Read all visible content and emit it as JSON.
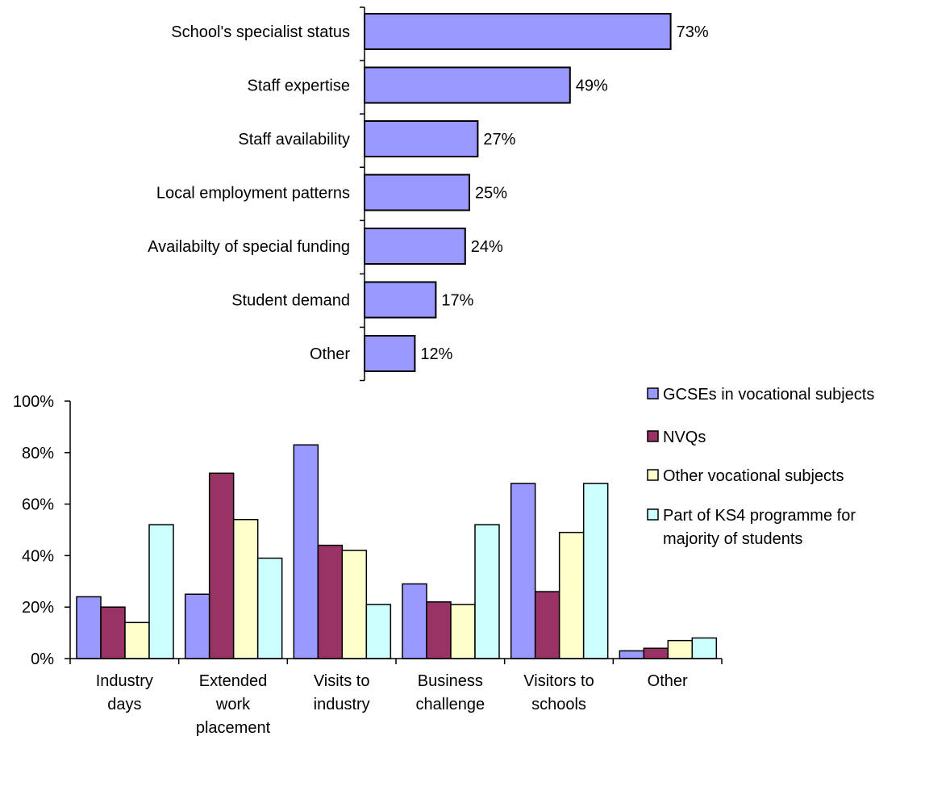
{
  "chart_data": [
    {
      "type": "bar",
      "orientation": "horizontal",
      "categories": [
        "School's specialist status",
        "Staff expertise",
        "Staff availability",
        "Local employment patterns",
        "Availabilty of special funding",
        "Student demand",
        "Other"
      ],
      "values": [
        73,
        49,
        27,
        25,
        24,
        17,
        12
      ],
      "data_labels": [
        "73%",
        "49%",
        "27%",
        "25%",
        "24%",
        "17%",
        "12%"
      ],
      "xlim": [
        0,
        100
      ],
      "grid": false,
      "colors": {
        "bar": "#9999ff",
        "edge": "#000000"
      }
    },
    {
      "type": "bar",
      "orientation": "vertical",
      "categories": [
        [
          "Industry",
          "days"
        ],
        [
          "Extended",
          "work",
          "placement"
        ],
        [
          "Visits to",
          "industry"
        ],
        [
          "Business",
          "challenge"
        ],
        [
          "Visitors to",
          "schools"
        ],
        [
          "Other"
        ]
      ],
      "series": [
        {
          "name": "GCSEs in vocational subjects",
          "values": [
            24,
            25,
            83,
            29,
            68,
            3
          ],
          "color": "#9999ff"
        },
        {
          "name": "NVQs",
          "values": [
            20,
            72,
            44,
            22,
            26,
            4
          ],
          "color": "#993366"
        },
        {
          "name": "Other vocational subjects",
          "values": [
            14,
            54,
            42,
            21,
            49,
            7
          ],
          "color": "#ffffcc"
        },
        {
          "name": [
            "Part of KS4 programme for",
            "majority of students"
          ],
          "values": [
            52,
            39,
            21,
            52,
            68,
            8
          ],
          "color": "#ccffff"
        }
      ],
      "ylim": [
        0,
        100
      ],
      "yticks": [
        "0%",
        "20%",
        "40%",
        "60%",
        "80%",
        "100%"
      ],
      "grid": false,
      "legend": "right"
    }
  ]
}
